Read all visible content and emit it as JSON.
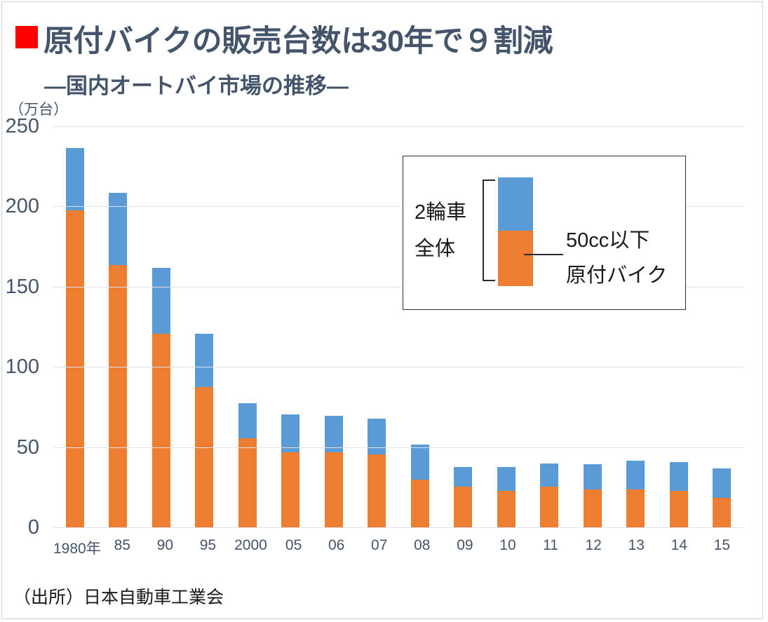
{
  "header": {
    "title": "原付バイクの販売台数は30年で９割減",
    "subtitle": "—国内オートバイ市場の推移—"
  },
  "axis": {
    "unit_label": "（万台）"
  },
  "legend": {
    "group_line1": "2輪車",
    "group_line2": "全体",
    "moped_line1": "50cc以下",
    "moped_line2": "原付バイク"
  },
  "source": "（出所）日本自動車工業会",
  "colors": {
    "blue": "#5B9BD5",
    "orange": "#ED7D31",
    "heading": "#44546A",
    "axis_text": "#44546A",
    "grid": "#dde3eb",
    "bullet_red": "#FF0000"
  },
  "chart_data": {
    "type": "bar",
    "stacked": true,
    "title": "国内オートバイ市場の推移",
    "ylabel": "万台",
    "xlabel": "",
    "ylim": [
      0,
      250
    ],
    "yticks": [
      0,
      50,
      100,
      150,
      200,
      250
    ],
    "grid": true,
    "legend_position": "inside-top-right",
    "categories": [
      "1980年",
      "85",
      "90",
      "95",
      "2000",
      "05",
      "06",
      "07",
      "08",
      "09",
      "10",
      "11",
      "12",
      "13",
      "14",
      "15"
    ],
    "series": [
      {
        "name": "50cc以下原付バイク",
        "role": "moped",
        "color": "#ED7D31",
        "values": [
          198,
          164,
          121,
          88,
          56,
          47,
          47,
          46,
          30,
          26,
          23,
          26,
          24,
          24,
          23,
          19
        ]
      },
      {
        "name": "2輪車全体",
        "role": "total",
        "color": "#5B9BD5",
        "values": [
          237,
          209,
          162,
          121,
          78,
          71,
          70,
          68,
          52,
          38,
          38,
          40,
          40,
          42,
          41,
          37
        ]
      }
    ]
  }
}
